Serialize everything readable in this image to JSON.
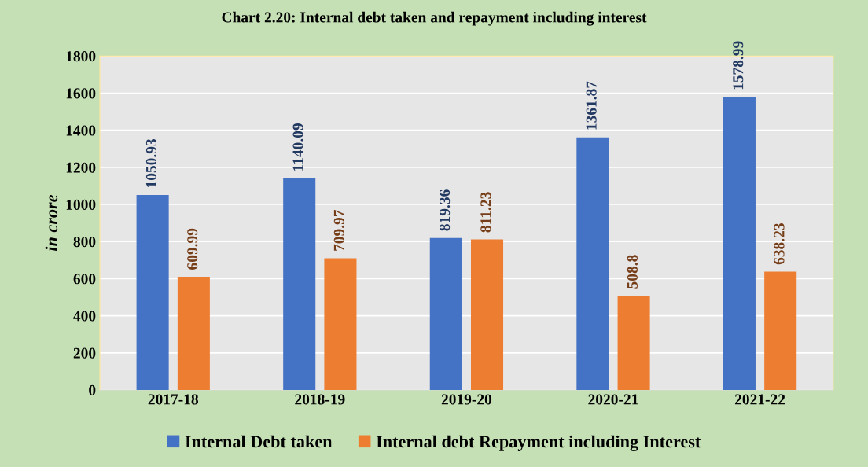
{
  "chart_data": {
    "type": "bar",
    "title": "Chart 2.20: Internal debt taken and repayment including interest",
    "ylabel": "in crore",
    "categories": [
      "2017-18",
      "2018-19",
      "2019-20",
      "2020-21",
      "2021-22"
    ],
    "series": [
      {
        "name": "Internal Debt taken",
        "color": "#4472c4",
        "values": [
          1050.93,
          1140.09,
          819.36,
          1361.87,
          1578.99
        ]
      },
      {
        "name": "Internal debt Repayment including Interest",
        "color": "#ed7d31",
        "values": [
          609.99,
          709.97,
          811.23,
          508.8,
          638.23
        ]
      }
    ],
    "ylim": [
      0,
      1800
    ],
    "yticks": [
      0,
      200,
      400,
      600,
      800,
      1000,
      1200,
      1400,
      1600,
      1800
    ],
    "grid": "y",
    "legend": "bottom",
    "data_labels": true
  }
}
